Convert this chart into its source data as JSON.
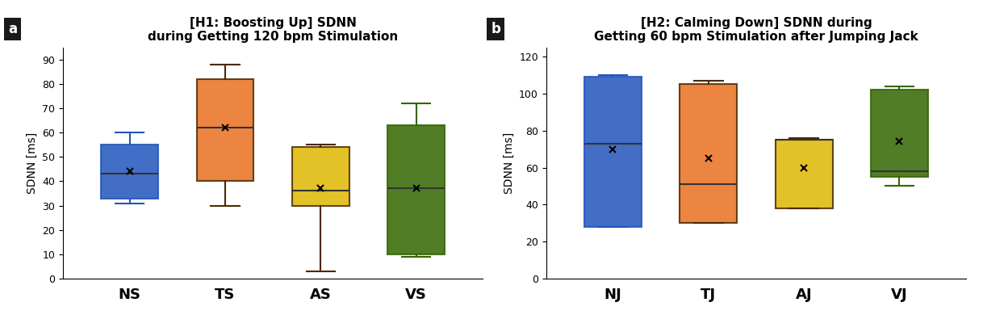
{
  "panel_a": {
    "title": "[H1: Boosting Up] SDNN\nduring Getting 120 bpm Stimulation",
    "ylabel": "SDNN [ms]",
    "xlabel_labels": [
      "NS",
      "TS",
      "AS",
      "VS"
    ],
    "ylim": [
      0,
      95
    ],
    "yticks": [
      0,
      10,
      20,
      30,
      40,
      50,
      60,
      70,
      80,
      90
    ],
    "colors": [
      "#2255BB",
      "#E87020",
      "#DDB800",
      "#336600"
    ],
    "boxes": [
      {
        "whislo": 31,
        "q1": 33,
        "med": 43,
        "q3": 55,
        "whishi": 60,
        "mean": 44,
        "fliers": []
      },
      {
        "whislo": 30,
        "q1": 40,
        "med": 62,
        "q3": 82,
        "whishi": 88,
        "mean": 62,
        "fliers": []
      },
      {
        "whislo": 3,
        "q1": 30,
        "med": 36,
        "q3": 54,
        "whishi": 55,
        "mean": 37,
        "fliers": []
      },
      {
        "whislo": 9,
        "q1": 10,
        "med": 37,
        "q3": 63,
        "whishi": 72,
        "mean": 37,
        "fliers": []
      }
    ]
  },
  "panel_b": {
    "title": "[H2: Calming Down] SDNN during\nGetting 60 bpm Stimulation after Jumping Jack",
    "ylabel": "SDNN [ms]",
    "xlabel_labels": [
      "NJ",
      "TJ",
      "AJ",
      "VJ"
    ],
    "ylim": [
      0,
      125
    ],
    "yticks": [
      0,
      20,
      40,
      60,
      80,
      100,
      120
    ],
    "colors": [
      "#2255BB",
      "#E87020",
      "#DDB800",
      "#336600"
    ],
    "boxes": [
      {
        "whislo": 28,
        "q1": 28,
        "med": 73,
        "q3": 109,
        "whishi": 110,
        "mean": 70,
        "fliers": []
      },
      {
        "whislo": 30,
        "q1": 30,
        "med": 51,
        "q3": 105,
        "whishi": 107,
        "mean": 65,
        "fliers": []
      },
      {
        "whislo": 38,
        "q1": 38,
        "med": 75,
        "q3": 75,
        "whishi": 76,
        "mean": 60,
        "fliers": []
      },
      {
        "whislo": 50,
        "q1": 55,
        "med": 58,
        "q3": 102,
        "whishi": 104,
        "mean": 74,
        "fliers": []
      }
    ]
  },
  "label_a_bg": "#1a1a1a",
  "label_b_bg": "#1a1a1a",
  "label_color": "white",
  "background_color": "white",
  "title_fontsize": 11,
  "tick_fontsize": 9,
  "label_fontsize": 10,
  "xlabel_fontsize": 13
}
